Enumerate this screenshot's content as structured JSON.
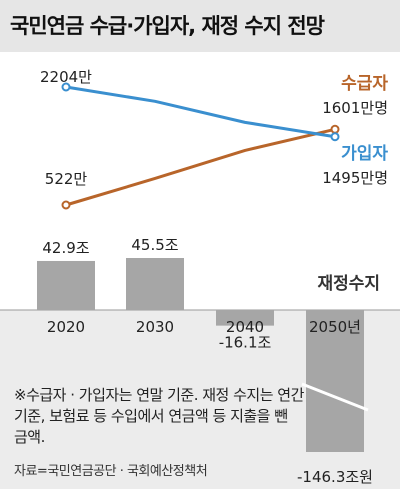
{
  "title": "국민연금 수급·가입자, 재정 수지 전망",
  "chart_data": [
    {
      "type": "line",
      "x": [
        "2020",
        "2030",
        "2040",
        "2050"
      ],
      "series": [
        {
          "name": "수급자",
          "color": "#b8652a",
          "values": [
            522,
            900,
            1300,
            1601
          ],
          "start_label": "522만",
          "end_label": "1601만명"
        },
        {
          "name": "가입자",
          "color": "#3a8fcf",
          "values": [
            2204,
            2000,
            1700,
            1495
          ],
          "start_label": "2204만",
          "end_label": "1495만명"
        }
      ]
    },
    {
      "type": "bar",
      "title": "재정수지",
      "categories": [
        "2020",
        "2030",
        "2040",
        "2050년"
      ],
      "values": [
        42.9,
        45.5,
        -16.1,
        -146.3
      ],
      "value_labels": [
        "42.9조",
        "45.5조",
        "-16.1조",
        "-146.3조원"
      ],
      "bar_color": "#a6a6a6"
    }
  ],
  "note": "※수급자 · 가입자는 연말 기준. 재정 수지는 연간 기준, 보험료 등 수입에서 연금액 등 지출을 뺀 금액.",
  "source": "자료=국민연금공단 · 국회예산정책처"
}
